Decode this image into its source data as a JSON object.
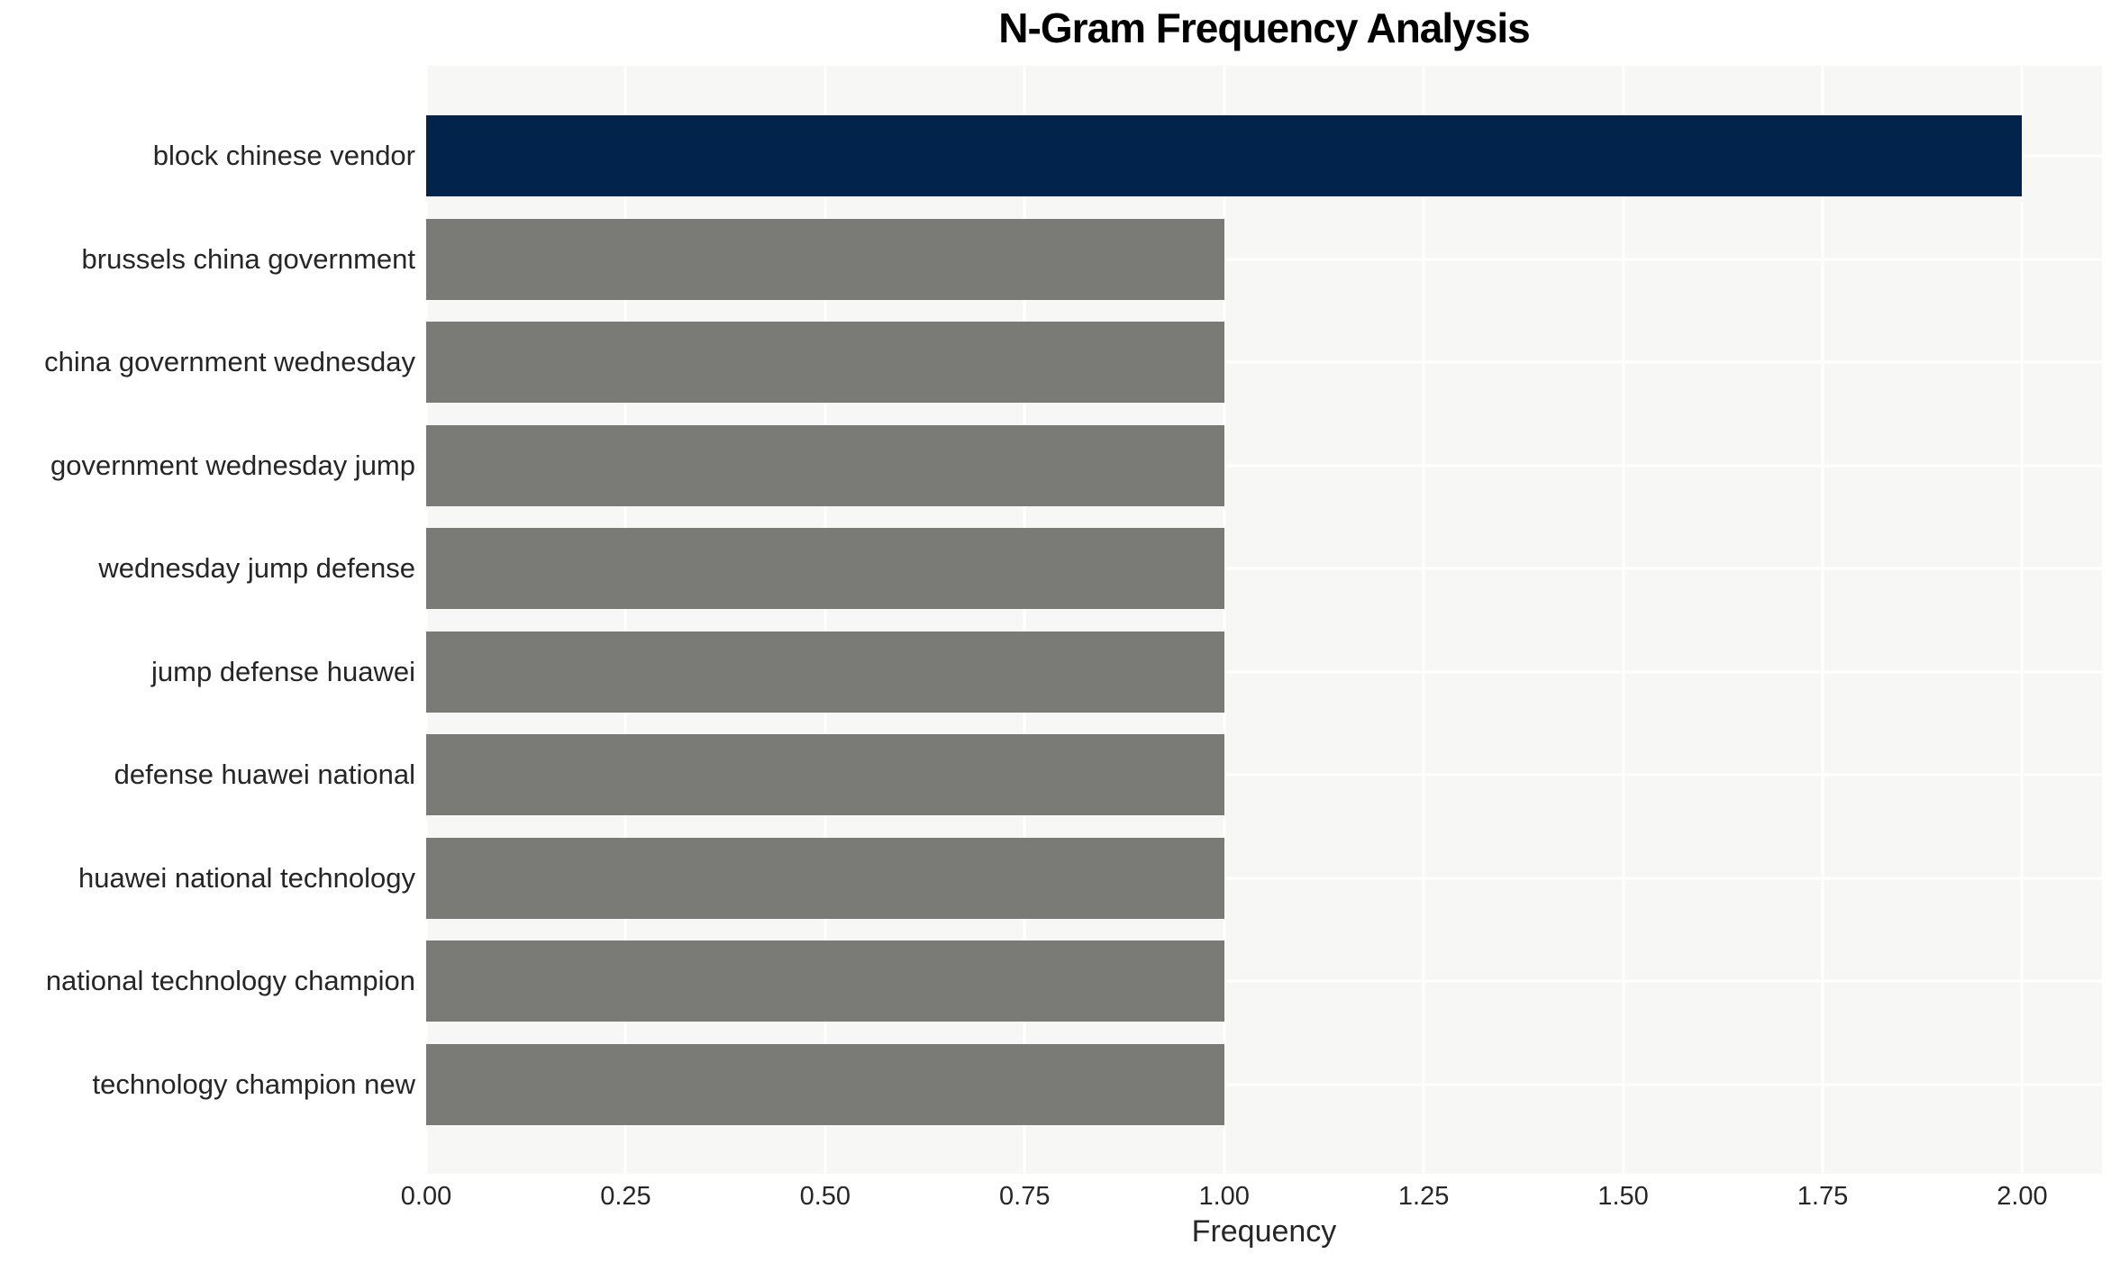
{
  "chart_data": {
    "type": "bar",
    "orientation": "horizontal",
    "title": "N-Gram Frequency Analysis",
    "xlabel": "Frequency",
    "ylabel": "",
    "categories": [
      "block chinese vendor",
      "brussels china government",
      "china government wednesday",
      "government wednesday jump",
      "wednesday jump defense",
      "jump defense huawei",
      "defense huawei national",
      "huawei national technology",
      "national technology champion",
      "technology champion new"
    ],
    "values": [
      2.0,
      1.0,
      1.0,
      1.0,
      1.0,
      1.0,
      1.0,
      1.0,
      1.0,
      1.0
    ],
    "highlight_index": 0,
    "xlim": [
      0,
      2.1
    ],
    "xticks": [
      0,
      0.25,
      0.5,
      0.75,
      1.0,
      1.25,
      1.5,
      1.75,
      2.0
    ],
    "xtick_labels": [
      "0.00",
      "0.25",
      "0.50",
      "0.75",
      "1.00",
      "1.25",
      "1.50",
      "1.75",
      "2.00"
    ],
    "grid": true,
    "legend": "none",
    "colors": {
      "bar_highlight": "#02234C",
      "bar_default": "#7A7A76",
      "plot_background": "#F7F7F6",
      "gridline": "#FFFFFF",
      "tick_text": "#262626",
      "title_text": "#000000"
    }
  }
}
